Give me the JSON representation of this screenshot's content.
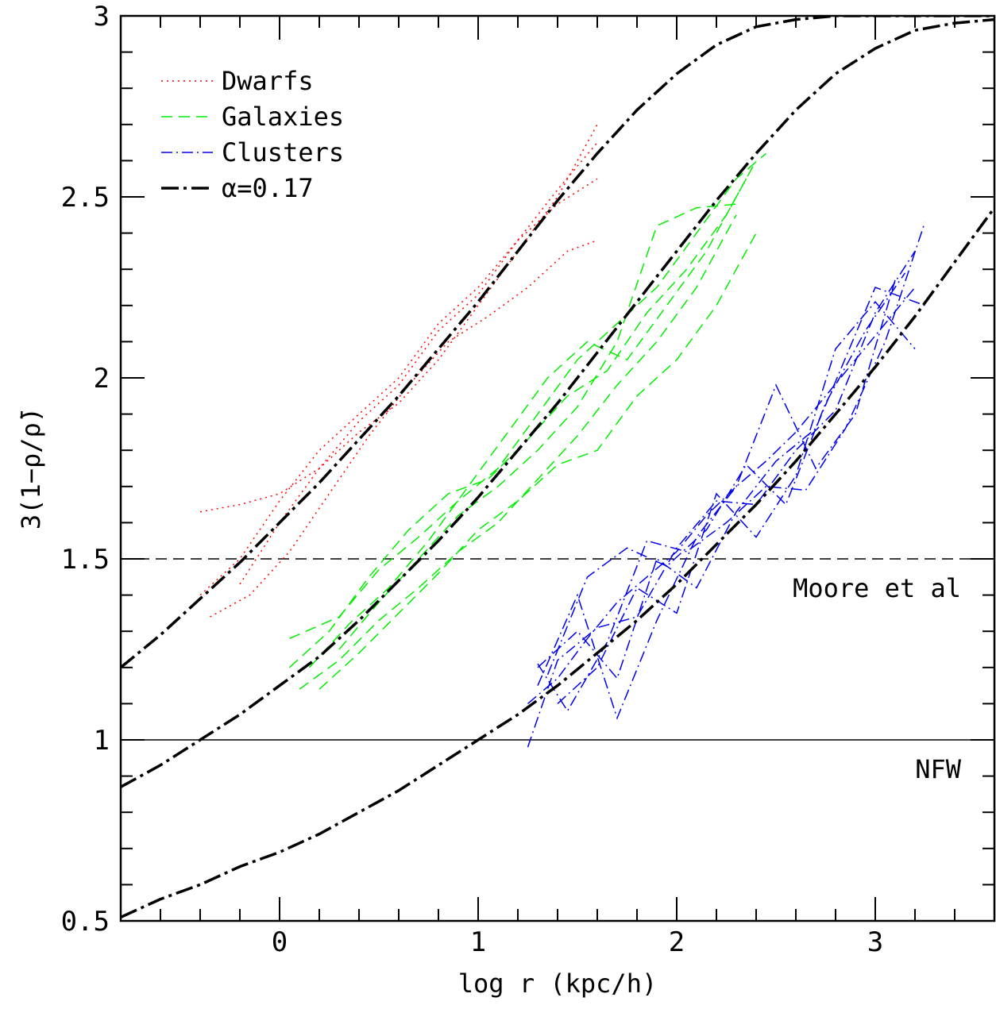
{
  "chart_data": {
    "type": "line",
    "title": "",
    "xlabel": "log r (kpc/h)",
    "ylabel": "3(1−ρ/ρ̄)",
    "xlim": [
      -0.8,
      3.6
    ],
    "ylim": [
      0.5,
      3.0
    ],
    "x_ticks": [
      {
        "value": 0,
        "label": "0"
      },
      {
        "value": 1,
        "label": "1"
      },
      {
        "value": 2,
        "label": "2"
      },
      {
        "value": 3,
        "label": "3"
      }
    ],
    "y_ticks": [
      {
        "value": 0.5,
        "label": "0.5"
      },
      {
        "value": 1.0,
        "label": "1"
      },
      {
        "value": 1.5,
        "label": "1.5"
      },
      {
        "value": 2.0,
        "label": "2"
      },
      {
        "value": 2.5,
        "label": "2.5"
      },
      {
        "value": 3.0,
        "label": "3"
      }
    ],
    "legend": {
      "placement": "top-left",
      "entries": [
        {
          "label": "Dwarfs",
          "color": "#ff0000",
          "style": "dotted"
        },
        {
          "label": "Galaxies",
          "color": "#00ee00",
          "style": "dashed"
        },
        {
          "label": "Clusters",
          "color": "#0000ee",
          "style": "dashdot"
        },
        {
          "label": "α=0.17",
          "color": "#000000",
          "style": "longdashdot"
        }
      ]
    },
    "reference_lines": [
      {
        "y": 1.5,
        "label": "Moore et al",
        "style": "dashed"
      },
      {
        "y": 1.0,
        "label": "NFW",
        "style": "solid"
      }
    ],
    "model_curves": [
      {
        "x": [
          -0.8,
          -0.6,
          -0.4,
          -0.2,
          0.0,
          0.2,
          0.4,
          0.6,
          0.8,
          1.0,
          1.2,
          1.4,
          1.6,
          1.8,
          2.0,
          2.2,
          2.4,
          2.6,
          2.8,
          3.0,
          3.2,
          3.4,
          3.6
        ],
        "y": [
          1.2,
          1.29,
          1.39,
          1.49,
          1.6,
          1.71,
          1.83,
          1.95,
          2.08,
          2.21,
          2.35,
          2.49,
          2.62,
          2.74,
          2.84,
          2.92,
          2.97,
          2.99,
          3.0,
          3.0,
          3.0,
          3.0,
          3.0
        ]
      },
      {
        "x": [
          -0.8,
          -0.6,
          -0.4,
          -0.2,
          0.0,
          0.2,
          0.4,
          0.6,
          0.8,
          1.0,
          1.2,
          1.4,
          1.6,
          1.8,
          2.0,
          2.2,
          2.4,
          2.6,
          2.8,
          3.0,
          3.2,
          3.4,
          3.6
        ],
        "y": [
          0.87,
          0.93,
          1.0,
          1.07,
          1.15,
          1.23,
          1.33,
          1.44,
          1.55,
          1.67,
          1.8,
          1.93,
          2.07,
          2.21,
          2.35,
          2.49,
          2.62,
          2.74,
          2.84,
          2.91,
          2.96,
          2.98,
          2.99
        ]
      },
      {
        "x": [
          -0.8,
          -0.6,
          -0.4,
          -0.2,
          0.0,
          0.2,
          0.4,
          0.6,
          0.8,
          1.0,
          1.2,
          1.4,
          1.6,
          1.8,
          2.0,
          2.2,
          2.4,
          2.6,
          2.8,
          3.0,
          3.2,
          3.4,
          3.6
        ],
        "y": [
          0.51,
          0.56,
          0.6,
          0.65,
          0.69,
          0.74,
          0.8,
          0.86,
          0.93,
          1.0,
          1.07,
          1.15,
          1.24,
          1.33,
          1.43,
          1.54,
          1.65,
          1.77,
          1.9,
          2.03,
          2.17,
          2.32,
          2.47
        ]
      }
    ],
    "series": [
      {
        "group": "Dwarfs",
        "x": [
          -0.4,
          -0.2,
          0.0,
          0.2,
          0.4,
          0.6,
          0.8,
          1.0,
          1.2,
          1.4,
          1.6
        ],
        "y": [
          1.63,
          1.65,
          1.68,
          1.75,
          1.85,
          1.93,
          2.05,
          2.2,
          2.35,
          2.5,
          2.7
        ]
      },
      {
        "group": "Dwarfs",
        "x": [
          -0.35,
          -0.15,
          0.05,
          0.25,
          0.45,
          0.65,
          0.85,
          1.05,
          1.25,
          1.45,
          1.6
        ],
        "y": [
          1.34,
          1.4,
          1.52,
          1.68,
          1.84,
          1.98,
          2.1,
          2.17,
          2.25,
          2.35,
          2.38
        ]
      },
      {
        "group": "Dwarfs",
        "x": [
          -0.4,
          -0.2,
          0.0,
          0.2,
          0.4,
          0.6,
          0.8,
          1.0,
          1.2,
          1.4,
          1.6
        ],
        "y": [
          1.4,
          1.5,
          1.66,
          1.8,
          1.9,
          2.0,
          2.15,
          2.25,
          2.38,
          2.48,
          2.55
        ]
      },
      {
        "group": "Dwarfs",
        "x": [
          -0.2,
          0.0,
          0.2,
          0.4,
          0.6,
          0.8,
          1.0,
          1.2,
          1.4,
          1.6
        ],
        "y": [
          1.43,
          1.6,
          1.75,
          1.88,
          1.98,
          2.13,
          2.23,
          2.38,
          2.52,
          2.65
        ]
      },
      {
        "group": "Galaxies",
        "x": [
          0.05,
          0.3,
          0.5,
          0.7,
          0.9,
          1.1,
          1.3,
          1.5,
          1.7,
          1.9,
          2.1,
          2.3,
          2.45
        ],
        "y": [
          1.28,
          1.34,
          1.47,
          1.56,
          1.66,
          1.75,
          1.9,
          2.05,
          2.15,
          2.25,
          2.4,
          2.55,
          2.62
        ]
      },
      {
        "group": "Galaxies",
        "x": [
          0.1,
          0.3,
          0.5,
          0.7,
          0.9,
          1.1,
          1.3,
          1.5,
          1.7,
          1.9,
          2.1,
          2.3
        ],
        "y": [
          1.14,
          1.22,
          1.33,
          1.42,
          1.52,
          1.6,
          1.72,
          1.84,
          1.98,
          2.1,
          2.25,
          2.45
        ]
      },
      {
        "group": "Galaxies",
        "x": [
          0.2,
          0.4,
          0.6,
          0.8,
          1.0,
          1.2,
          1.4,
          1.6,
          1.8,
          2.0,
          2.2,
          2.4
        ],
        "y": [
          1.14,
          1.24,
          1.35,
          1.46,
          1.58,
          1.66,
          1.76,
          1.8,
          1.95,
          2.05,
          2.2,
          2.4
        ]
      },
      {
        "group": "Galaxies",
        "x": [
          0.05,
          0.25,
          0.45,
          0.65,
          0.85,
          1.05,
          1.25,
          1.45,
          1.65,
          1.85,
          2.05,
          2.25,
          2.4
        ],
        "y": [
          1.2,
          1.3,
          1.45,
          1.58,
          1.68,
          1.72,
          1.83,
          1.95,
          2.02,
          2.18,
          2.3,
          2.45,
          2.6
        ]
      },
      {
        "group": "Galaxies",
        "x": [
          0.3,
          0.5,
          0.7,
          0.9,
          1.1,
          1.3,
          1.5,
          1.7,
          1.9,
          2.1,
          2.3
        ],
        "y": [
          1.25,
          1.38,
          1.5,
          1.62,
          1.7,
          1.8,
          1.92,
          2.1,
          2.42,
          2.47,
          2.48
        ]
      },
      {
        "group": "Galaxies",
        "x": [
          0.15,
          0.35,
          0.55,
          0.75,
          0.95,
          1.15,
          1.35,
          1.55,
          1.75,
          1.95,
          2.15,
          2.35
        ],
        "y": [
          1.2,
          1.32,
          1.42,
          1.55,
          1.7,
          1.85,
          2.0,
          2.1,
          2.05,
          2.2,
          2.35,
          2.55
        ]
      },
      {
        "group": "Clusters",
        "x": [
          1.25,
          1.4,
          1.55,
          1.7,
          1.85,
          2.0,
          2.15,
          2.3,
          2.45,
          2.6,
          2.75,
          2.9,
          3.05,
          3.2
        ],
        "y": [
          1.1,
          1.17,
          1.28,
          1.38,
          1.45,
          1.52,
          1.62,
          1.7,
          1.77,
          1.85,
          1.95,
          2.05,
          2.15,
          2.25
        ]
      },
      {
        "group": "Clusters",
        "x": [
          1.25,
          1.4,
          1.6,
          1.8,
          2.0,
          2.2,
          2.4,
          2.6,
          2.8,
          3.0,
          3.2
        ],
        "y": [
          0.98,
          1.22,
          1.31,
          1.34,
          1.53,
          1.66,
          1.65,
          1.8,
          1.91,
          2.18,
          2.35
        ]
      },
      {
        "group": "Clusters",
        "x": [
          1.3,
          1.45,
          1.65,
          1.85,
          2.05,
          2.25,
          2.45,
          2.65,
          2.85,
          3.05,
          3.25
        ],
        "y": [
          1.21,
          1.08,
          1.27,
          1.55,
          1.52,
          1.6,
          1.7,
          1.69,
          1.86,
          2.1,
          2.43
        ]
      },
      {
        "group": "Clusters",
        "x": [
          1.3,
          1.5,
          1.7,
          1.9,
          2.1,
          2.3,
          2.5,
          2.7,
          2.9,
          3.1
        ],
        "y": [
          1.15,
          1.4,
          1.06,
          1.33,
          1.56,
          1.7,
          1.98,
          1.75,
          1.9,
          2.27
        ]
      },
      {
        "group": "Clusters",
        "x": [
          1.35,
          1.55,
          1.75,
          1.95,
          2.15,
          2.35,
          2.55,
          2.75,
          2.95,
          3.15
        ],
        "y": [
          1.18,
          1.45,
          1.53,
          1.48,
          1.58,
          1.76,
          1.65,
          1.93,
          2.13,
          2.29
        ]
      },
      {
        "group": "Clusters",
        "x": [
          1.4,
          1.6,
          1.8,
          2.0,
          2.2,
          2.4,
          2.6,
          2.8,
          3.0,
          3.2
        ],
        "y": [
          1.1,
          1.2,
          1.42,
          1.35,
          1.68,
          1.56,
          1.73,
          2.08,
          2.21,
          2.08
        ]
      },
      {
        "group": "Clusters",
        "x": [
          1.3,
          1.5,
          1.7,
          1.9,
          2.1,
          2.3,
          2.5,
          2.7,
          3.0,
          3.25
        ],
        "y": [
          1.2,
          1.3,
          1.17,
          1.5,
          1.42,
          1.63,
          1.77,
          1.86,
          2.25,
          2.2
        ]
      }
    ]
  }
}
